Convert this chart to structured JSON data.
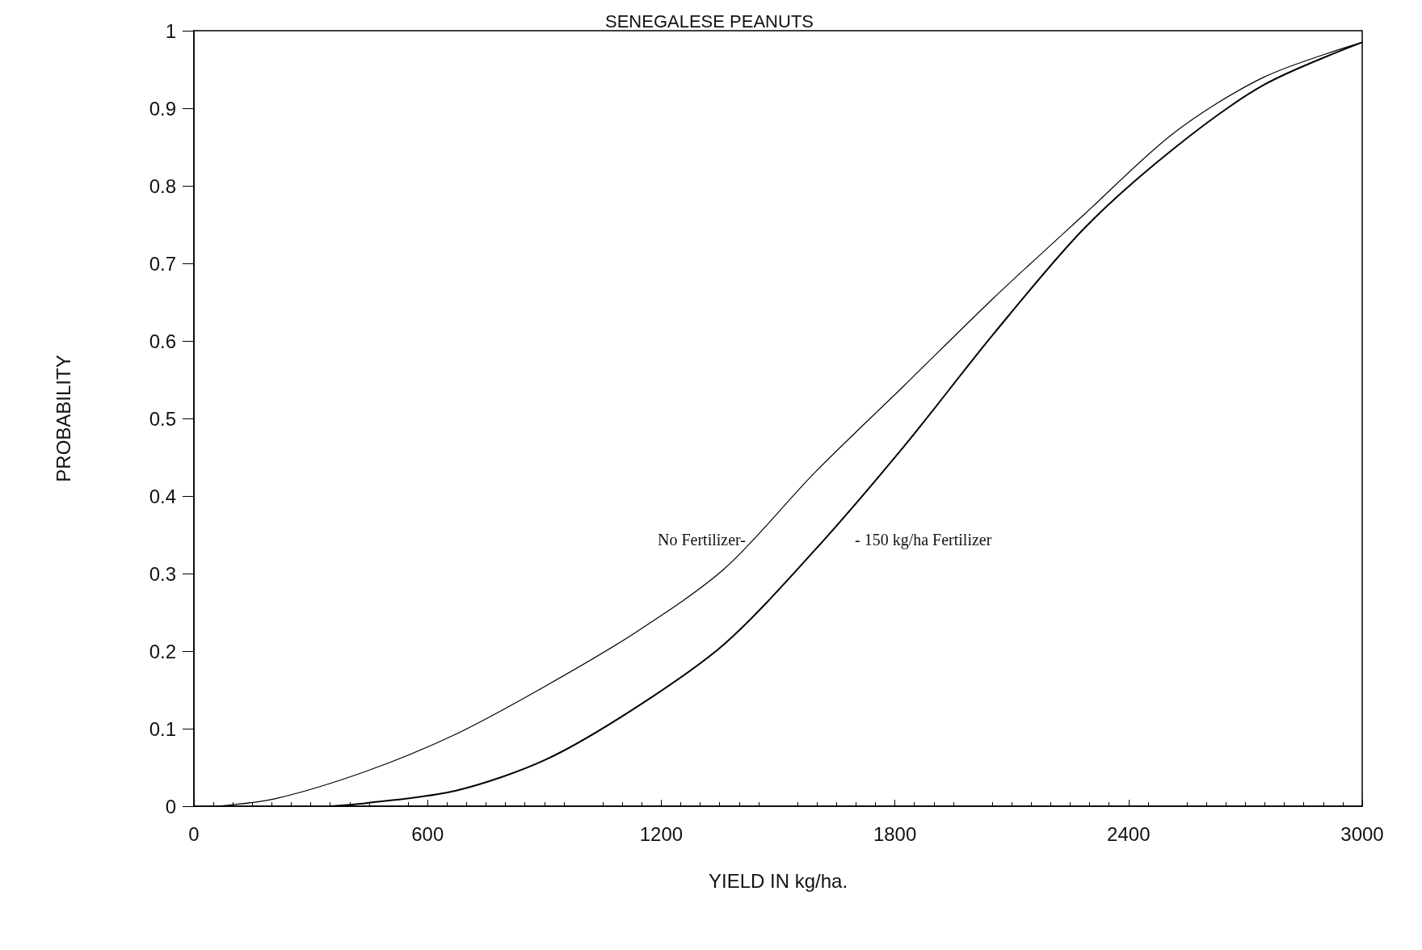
{
  "chart_data": {
    "type": "line",
    "title": "SENEGALESE PEANUTS",
    "xlabel": "YIELD IN kg/ha.",
    "ylabel": "PROBABILITY",
    "xlim": [
      0,
      3000
    ],
    "ylim": [
      0,
      1
    ],
    "xticks": [
      0,
      600,
      1200,
      1800,
      2400,
      3000
    ],
    "yticks": [
      0,
      0.1,
      0.2,
      0.3,
      0.4,
      0.5,
      0.6,
      0.7,
      0.8,
      0.9,
      1
    ],
    "grid": false,
    "marker": "none",
    "line_style": "solid",
    "series": [
      {
        "color": "#000000",
        "x": [
          60,
          212,
          442,
          673,
          903,
          1134,
          1364,
          1594,
          1825,
          2055,
          2286,
          2516,
          2747,
          3000
        ],
        "values": [
          0,
          0.01,
          0.045,
          0.093,
          0.155,
          0.224,
          0.307,
          0.43,
          0.543,
          0.656,
          0.763,
          0.868,
          0.94,
          0.985
        ]
      },
      {
        "color": "#000000",
        "x": [
          350,
          442,
          673,
          903,
          1134,
          1364,
          1594,
          1825,
          2055,
          2286,
          2516,
          2747,
          3000
        ],
        "values": [
          0,
          0.004,
          0.02,
          0.06,
          0.127,
          0.21,
          0.33,
          0.465,
          0.61,
          0.745,
          0.848,
          0.93,
          0.985
        ]
      }
    ],
    "annotations": [
      "No Fertilizer-",
      "- 150 kg/ha Fertilizer"
    ]
  }
}
